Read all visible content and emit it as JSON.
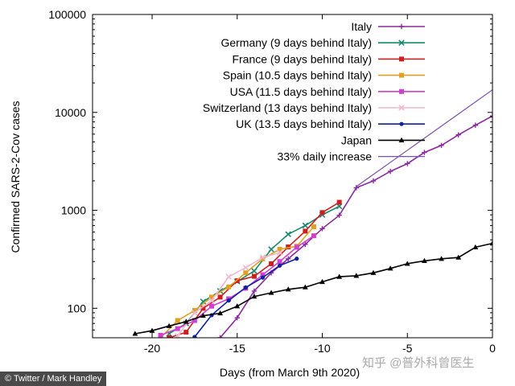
{
  "chart_data": {
    "type": "line",
    "xlabel": "Days (from March 9th 2020)",
    "ylabel": "Confirmed SARS-2-Cov cases",
    "xlim": [
      -23.5,
      0
    ],
    "ylim": [
      50,
      100000
    ],
    "yscale": "log",
    "grid": false,
    "legend": "top-right",
    "xticks": [
      -20,
      -15,
      -10,
      -5,
      0
    ],
    "xtick_labels": [
      "-20",
      "-15",
      "-10",
      "-5",
      "0"
    ],
    "yticks": [
      100,
      1000,
      10000,
      100000
    ],
    "ytick_labels": [
      "100",
      "1000",
      "10000",
      "100000"
    ],
    "series": [
      {
        "name": "Italy",
        "color": "#8b2a9e",
        "marker": "plus",
        "x": [
          -16,
          -15,
          -14,
          -13,
          -12,
          -11,
          -10,
          -9,
          -8,
          -7,
          -6,
          -5,
          -4,
          -3,
          -2,
          -1,
          0
        ],
        "y": [
          50,
          80,
          150,
          230,
          320,
          450,
          650,
          890,
          1700,
          2000,
          2500,
          3000,
          3900,
          4600,
          5900,
          7400,
          9200
        ]
      },
      {
        "name": "Germany (9 days behind Italy)",
        "color": "#1a8a6e",
        "marker": "x",
        "x": [
          -19,
          -18,
          -17,
          -16,
          -15,
          -14,
          -13,
          -12,
          -11,
          -10,
          -9
        ],
        "y": [
          55,
          70,
          117,
          150,
          188,
          240,
          400,
          570,
          700,
          900,
          1100
        ]
      },
      {
        "name": "France (9 days behind Italy)",
        "color": "#cc2020",
        "marker": "square",
        "x": [
          -19,
          -18,
          -17,
          -16,
          -15,
          -14,
          -13,
          -12,
          -11,
          -10,
          -9
        ],
        "y": [
          50,
          57,
          100,
          130,
          191,
          212,
          285,
          423,
          613,
          949,
          1209
        ]
      },
      {
        "name": "Spain (10.5 days behind Italy)",
        "color": "#e0a020",
        "marker": "square",
        "x": [
          -19.5,
          -18.5,
          -17.5,
          -16.5,
          -15.5,
          -14.5,
          -13.5,
          -12.5,
          -11.5,
          -10.5
        ],
        "y": [
          50,
          75,
          95,
          130,
          165,
          230,
          320,
          400,
          430,
          680
        ]
      },
      {
        "name": "USA (11.5 days behind Italy)",
        "color": "#d040d0",
        "marker": "square",
        "x": [
          -19.5,
          -18.5,
          -17.5,
          -16.5,
          -15.5,
          -14.5,
          -13.5,
          -12.5,
          -11.5,
          -10.5
        ],
        "y": [
          53,
          62,
          75,
          105,
          125,
          160,
          220,
          300,
          420,
          550
        ]
      },
      {
        "name": "Switzerland (13 days behind Italy)",
        "color": "#f0b8d0",
        "marker": "x",
        "x": [
          -18.5,
          -17.5,
          -16.5,
          -15.5,
          -14.5,
          -13.5,
          -12.5
        ],
        "y": [
          52,
          90,
          120,
          210,
          260,
          330,
          370
        ]
      },
      {
        "name": "UK (13.5 days behind Italy)",
        "color": "#1020a0",
        "marker": "dot",
        "x": [
          -17.5,
          -16.5,
          -15.5,
          -14.5,
          -13.5,
          -12.5,
          -11.5
        ],
        "y": [
          51,
          85,
          120,
          163,
          206,
          273,
          321
        ]
      },
      {
        "name": "Japan",
        "color": "#000000",
        "marker": "triangle",
        "x": [
          -21,
          -20,
          -19,
          -18,
          -17,
          -16,
          -15,
          -14,
          -13,
          -12,
          -11,
          -10,
          -9,
          -8,
          -7,
          -6,
          -5,
          -4,
          -3,
          -2,
          -1,
          0
        ],
        "y": [
          55,
          59,
          66,
          73,
          84,
          89,
          105,
          132,
          144,
          156,
          164,
          186,
          210,
          215,
          230,
          255,
          285,
          305,
          320,
          330,
          420,
          460
        ]
      },
      {
        "name": "33% daily increase",
        "color": "#7a50a8",
        "marker": "none",
        "x": [
          -8,
          0
        ],
        "y": [
          1750,
          17000
        ]
      }
    ]
  }
}
